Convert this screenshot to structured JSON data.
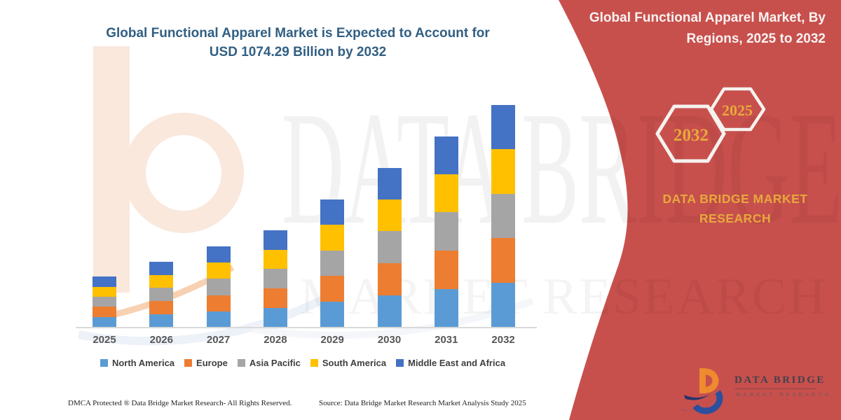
{
  "title_line1": "Global Functional Apparel Market is Expected to Account for",
  "title_line2": "USD 1074.29 Billion by 2032",
  "panel": {
    "heading_line1": "Global Functional Apparel Market, By",
    "heading_line2": "Regions, 2025 to 2032",
    "badge_large": "2032",
    "badge_small": "2025",
    "brand": "DATA BRIDGE MARKET RESEARCH",
    "bg_color": "#C7504D",
    "gold_color": "#E7A83C"
  },
  "watermark": {
    "line1": "DATA BRIDGE",
    "line2": "MARKET RESEARCH"
  },
  "chart_data": {
    "type": "bar",
    "stacked": true,
    "title": "Global Functional Apparel Market is Expected to Account for USD 1074.29 Billion by 2032",
    "unit": "USD Billion",
    "categories": [
      "2025",
      "2026",
      "2027",
      "2028",
      "2029",
      "2030",
      "2031",
      "2032"
    ],
    "series": [
      {
        "name": "North America",
        "color": "#5B9BD5",
        "values": [
          48,
          62,
          76,
          92,
          122,
          152,
          183,
          213
        ]
      },
      {
        "name": "Europe",
        "color": "#ED7D31",
        "values": [
          49,
          64,
          78,
          94,
          124,
          155,
          186,
          216
        ]
      },
      {
        "name": "Asia Pacific",
        "color": "#A5A5A5",
        "values": [
          48,
          64,
          80,
          95,
          125,
          156,
          186,
          216
        ]
      },
      {
        "name": "South America",
        "color": "#FFC000",
        "values": [
          48,
          62,
          77,
          93,
          123,
          153,
          184,
          215
        ]
      },
      {
        "name": "Middle East and Africa",
        "color": "#4472C4",
        "values": [
          51,
          63,
          79,
          94,
          123,
          153,
          183,
          214.29
        ]
      }
    ],
    "totals": [
      244,
      315,
      390,
      468,
      617,
      769,
      922,
      1074.29
    ],
    "xlabel": "",
    "ylabel": "",
    "ylim": [
      0,
      1100
    ],
    "grid": false,
    "legend_position": "bottom"
  },
  "footer": {
    "dmca": "DMCA Protected ® Data Bridge Market Research-  All Rights Reserved.",
    "source": "Source: Data Bridge Market Research  Market Analysis Study 2025"
  },
  "logo": {
    "name": "DATA BRIDGE",
    "tagline": "MARKET RESEARCH"
  }
}
